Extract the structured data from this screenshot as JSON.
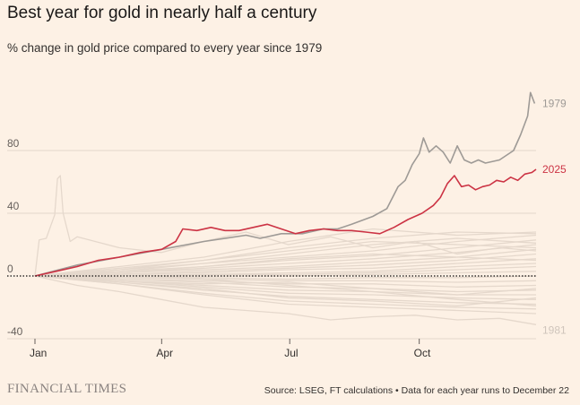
{
  "header": {
    "title": "Best year for gold in nearly half a century",
    "subtitle": "% change in gold price compared to every year since 1979"
  },
  "footer": {
    "brand": "FINANCIAL TIMES",
    "source": "Source: LSEG, FT calculations • Data for each year runs to December 22"
  },
  "colors": {
    "background": "#fdf1e5",
    "highlight_2025": "#cc3344",
    "highlight_1979": "#9e9a96",
    "background_years": "#e5d8cc",
    "gridline": "#e3d6ca",
    "zero_line": "#33302e"
  },
  "chart_data": {
    "type": "line",
    "title": "Best year for gold in nearly half a century",
    "ylabel": "% change in gold price compared to every year since 1979",
    "xlim": [
      0,
      356
    ],
    "ylim": [
      -40,
      120
    ],
    "yticks": [
      {
        "value": 80,
        "label": "80"
      },
      {
        "value": 40,
        "label": "40"
      },
      {
        "value": 0,
        "label": "0"
      },
      {
        "value": -40,
        "label": "-40"
      }
    ],
    "xticks": [
      {
        "value": 0,
        "label": "Jan"
      },
      {
        "value": 90,
        "label": "Apr"
      },
      {
        "value": 181,
        "label": "Jul"
      },
      {
        "value": 273,
        "label": "Oct"
      }
    ],
    "highlight_series": [
      {
        "name": "1979",
        "label": "1979",
        "x": [
          0,
          30,
          60,
          90,
          120,
          150,
          160,
          175,
          190,
          205,
          215,
          225,
          240,
          250,
          258,
          263,
          268,
          273,
          276,
          280,
          285,
          290,
          295,
          300,
          305,
          310,
          315,
          320,
          330,
          340,
          345,
          350,
          352,
          355
        ],
        "y": [
          0,
          7,
          12,
          17,
          22,
          26,
          24,
          27,
          27,
          30,
          30,
          33,
          38,
          43,
          57,
          61,
          71,
          78,
          88,
          79,
          83,
          79,
          72,
          83,
          74,
          72,
          74,
          72,
          74,
          80,
          90,
          102,
          117,
          110
        ]
      },
      {
        "name": "2025",
        "label": "2025",
        "x": [
          0,
          15,
          30,
          45,
          60,
          75,
          90,
          100,
          105,
          115,
          125,
          135,
          145,
          155,
          165,
          175,
          185,
          195,
          205,
          215,
          225,
          235,
          245,
          255,
          265,
          275,
          283,
          288,
          293,
          298,
          303,
          308,
          313,
          318,
          323,
          328,
          333,
          338,
          343,
          348,
          353,
          356
        ],
        "y": [
          0,
          3,
          6,
          10,
          12,
          15,
          17,
          22,
          30,
          29,
          31,
          29,
          29,
          31,
          33,
          30,
          27,
          29,
          30,
          29,
          29,
          28,
          27,
          31,
          36,
          40,
          45,
          50,
          59,
          64,
          57,
          58,
          55,
          57,
          58,
          61,
          60,
          63,
          61,
          65,
          66,
          68
        ]
      }
    ],
    "end_labels": [
      {
        "name": "1981",
        "label": "1981",
        "value": -31
      }
    ],
    "background_series": [
      {
        "name": "1980",
        "x": [
          0,
          3,
          8,
          14,
          16,
          18,
          20,
          25,
          30,
          60,
          90,
          120,
          150,
          180,
          210,
          240,
          270,
          300,
          330,
          356
        ],
        "y": [
          0,
          23,
          24,
          39,
          62,
          64,
          40,
          22,
          25,
          18,
          15,
          22,
          28,
          20,
          25,
          18,
          22,
          14,
          18,
          16
        ]
      },
      {
        "name": "1981",
        "x": [
          0,
          30,
          60,
          90,
          120,
          150,
          180,
          210,
          240,
          270,
          300,
          330,
          356
        ],
        "y": [
          0,
          -6,
          -10,
          -15,
          -20,
          -22,
          -24,
          -28,
          -26,
          -25,
          -28,
          -27,
          -31
        ]
      },
      {
        "name": "y01",
        "x": [
          0,
          60,
          120,
          180,
          240,
          300,
          356
        ],
        "y": [
          0,
          4,
          8,
          12,
          16,
          22,
          26
        ]
      },
      {
        "name": "y02",
        "x": [
          0,
          60,
          120,
          180,
          240,
          300,
          356
        ],
        "y": [
          0,
          3,
          6,
          10,
          13,
          18,
          23
        ]
      },
      {
        "name": "y03",
        "x": [
          0,
          60,
          120,
          180,
          240,
          300,
          356
        ],
        "y": [
          0,
          2,
          5,
          8,
          11,
          15,
          20
        ]
      },
      {
        "name": "y04",
        "x": [
          0,
          60,
          120,
          180,
          240,
          300,
          356
        ],
        "y": [
          0,
          2,
          4,
          6,
          9,
          12,
          17
        ]
      },
      {
        "name": "y05",
        "x": [
          0,
          60,
          120,
          180,
          240,
          300,
          356
        ],
        "y": [
          0,
          1,
          3,
          5,
          7,
          10,
          14
        ]
      },
      {
        "name": "y06",
        "x": [
          0,
          60,
          120,
          180,
          240,
          300,
          356
        ],
        "y": [
          0,
          1,
          2,
          4,
          5,
          8,
          11
        ]
      },
      {
        "name": "y07",
        "x": [
          0,
          60,
          120,
          180,
          240,
          300,
          356
        ],
        "y": [
          0,
          0,
          1,
          2,
          3,
          6,
          8
        ]
      },
      {
        "name": "y08",
        "x": [
          0,
          60,
          120,
          180,
          240,
          300,
          356
        ],
        "y": [
          0,
          0,
          1,
          1,
          2,
          4,
          6
        ]
      },
      {
        "name": "y09",
        "x": [
          0,
          60,
          120,
          180,
          240,
          300,
          356
        ],
        "y": [
          0,
          0,
          0,
          0,
          1,
          2,
          3
        ]
      },
      {
        "name": "y10",
        "x": [
          0,
          60,
          120,
          180,
          240,
          300,
          356
        ],
        "y": [
          0,
          -1,
          -1,
          -2,
          -1,
          -1,
          0
        ]
      },
      {
        "name": "y11",
        "x": [
          0,
          60,
          120,
          180,
          240,
          300,
          356
        ],
        "y": [
          0,
          -1,
          -2,
          -3,
          -3,
          -4,
          -3
        ]
      },
      {
        "name": "y12",
        "x": [
          0,
          60,
          120,
          180,
          240,
          300,
          356
        ],
        "y": [
          0,
          -2,
          -3,
          -5,
          -5,
          -7,
          -6
        ]
      },
      {
        "name": "y13",
        "x": [
          0,
          60,
          120,
          180,
          240,
          300,
          356
        ],
        "y": [
          0,
          -2,
          -4,
          -7,
          -8,
          -10,
          -9
        ]
      },
      {
        "name": "y14",
        "x": [
          0,
          60,
          120,
          180,
          240,
          300,
          356
        ],
        "y": [
          0,
          -3,
          -6,
          -9,
          -10,
          -12,
          -12
        ]
      },
      {
        "name": "y15",
        "x": [
          0,
          60,
          120,
          180,
          240,
          300,
          356
        ],
        "y": [
          0,
          -3,
          -7,
          -11,
          -12,
          -14,
          -15
        ]
      },
      {
        "name": "y16",
        "x": [
          0,
          60,
          120,
          180,
          240,
          300,
          356
        ],
        "y": [
          0,
          -4,
          -9,
          -13,
          -15,
          -17,
          -18
        ]
      },
      {
        "name": "y17",
        "x": [
          0,
          60,
          120,
          180,
          240,
          300,
          356
        ],
        "y": [
          0,
          -5,
          -11,
          -16,
          -18,
          -20,
          -21
        ]
      },
      {
        "name": "y18",
        "x": [
          0,
          60,
          120,
          180,
          240,
          300,
          356
        ],
        "y": [
          0,
          -5,
          -12,
          -18,
          -20,
          -22,
          -24
        ]
      },
      {
        "name": "y19",
        "x": [
          0,
          60,
          120,
          180,
          240,
          300,
          356
        ],
        "y": [
          0,
          5,
          10,
          18,
          24,
          28,
          27
        ]
      },
      {
        "name": "y20",
        "x": [
          0,
          60,
          120,
          180,
          240,
          300,
          356
        ],
        "y": [
          0,
          6,
          12,
          22,
          30,
          26,
          28
        ]
      },
      {
        "name": "y21",
        "x": [
          0,
          60,
          120,
          180,
          240,
          300,
          356
        ],
        "y": [
          0,
          3,
          8,
          14,
          20,
          24,
          21
        ]
      },
      {
        "name": "y22",
        "x": [
          0,
          60,
          120,
          180,
          240,
          300,
          356
        ],
        "y": [
          0,
          4,
          10,
          16,
          22,
          20,
          18
        ]
      },
      {
        "name": "y23",
        "x": [
          0,
          60,
          120,
          180,
          240,
          300,
          356
        ],
        "y": [
          0,
          2,
          6,
          11,
          14,
          12,
          10
        ]
      },
      {
        "name": "y24",
        "x": [
          0,
          60,
          120,
          180,
          240,
          300,
          356
        ],
        "y": [
          0,
          -3,
          -5,
          -4,
          -8,
          -12,
          -8
        ]
      },
      {
        "name": "y25",
        "x": [
          0,
          60,
          120,
          180,
          240,
          300,
          356
        ],
        "y": [
          0,
          -4,
          -8,
          -14,
          -16,
          -19,
          -14
        ]
      },
      {
        "name": "y26",
        "x": [
          0,
          60,
          120,
          180,
          240,
          300,
          356
        ],
        "y": [
          0,
          2,
          -2,
          -6,
          -10,
          -15,
          -19
        ]
      }
    ]
  }
}
